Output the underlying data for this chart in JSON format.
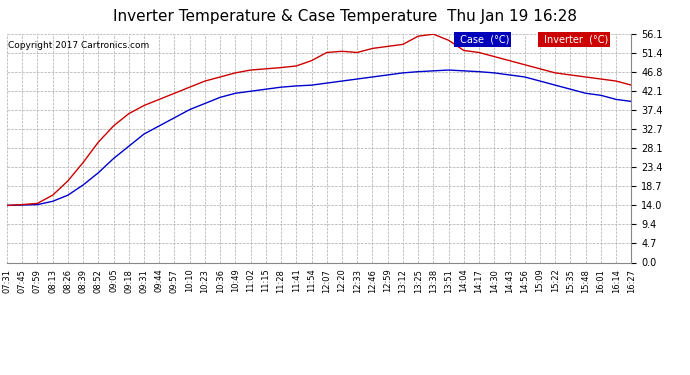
{
  "title": "Inverter Temperature & Case Temperature  Thu Jan 19 16:28",
  "copyright": "Copyright 2017 Cartronics.com",
  "y_ticks": [
    0.0,
    4.7,
    9.4,
    14.0,
    18.7,
    23.4,
    28.1,
    32.7,
    37.4,
    42.1,
    46.8,
    51.4,
    56.1
  ],
  "x_labels": [
    "07:31",
    "07:45",
    "07:59",
    "08:13",
    "08:26",
    "08:39",
    "08:52",
    "09:05",
    "09:18",
    "09:31",
    "09:44",
    "09:57",
    "10:10",
    "10:23",
    "10:36",
    "10:49",
    "11:02",
    "11:15",
    "11:28",
    "11:41",
    "11:54",
    "12:07",
    "12:20",
    "12:33",
    "12:46",
    "12:59",
    "13:12",
    "13:25",
    "13:38",
    "13:51",
    "14:04",
    "14:17",
    "14:30",
    "14:43",
    "14:56",
    "15:09",
    "15:22",
    "15:35",
    "15:48",
    "16:01",
    "16:14",
    "16:27"
  ],
  "background_color": "#ffffff",
  "plot_bg_color": "#ffffff",
  "grid_color": "#aaaaaa",
  "title_fontsize": 11,
  "case_color": "#0000cc",
  "inverter_color": "#cc0000",
  "legend_case_bg": "#0000bb",
  "legend_inverter_bg": "#cc0000",
  "ylim": [
    0.0,
    56.1
  ],
  "case_temps": [
    14.0,
    14.1,
    14.2,
    15.0,
    16.5,
    19.0,
    22.0,
    25.5,
    28.5,
    31.5,
    33.5,
    35.5,
    37.5,
    39.0,
    40.5,
    41.5,
    42.0,
    42.5,
    43.0,
    43.3,
    43.5,
    44.0,
    44.5,
    45.0,
    45.5,
    46.0,
    46.5,
    46.8,
    47.0,
    47.2,
    47.0,
    46.8,
    46.5,
    46.0,
    45.5,
    44.5,
    43.5,
    42.5,
    41.5,
    41.0,
    40.0,
    39.5
  ],
  "inverter_temps": [
    14.0,
    14.2,
    14.5,
    16.5,
    20.0,
    24.5,
    29.5,
    33.5,
    36.5,
    38.5,
    40.0,
    41.5,
    43.0,
    44.5,
    45.5,
    46.5,
    47.2,
    47.5,
    47.8,
    48.2,
    49.5,
    51.5,
    51.8,
    51.5,
    52.5,
    53.0,
    53.5,
    55.5,
    56.0,
    54.5,
    52.0,
    51.5,
    50.5,
    49.5,
    48.5,
    47.5,
    46.5,
    46.0,
    45.5,
    45.0,
    44.5,
    43.5
  ]
}
